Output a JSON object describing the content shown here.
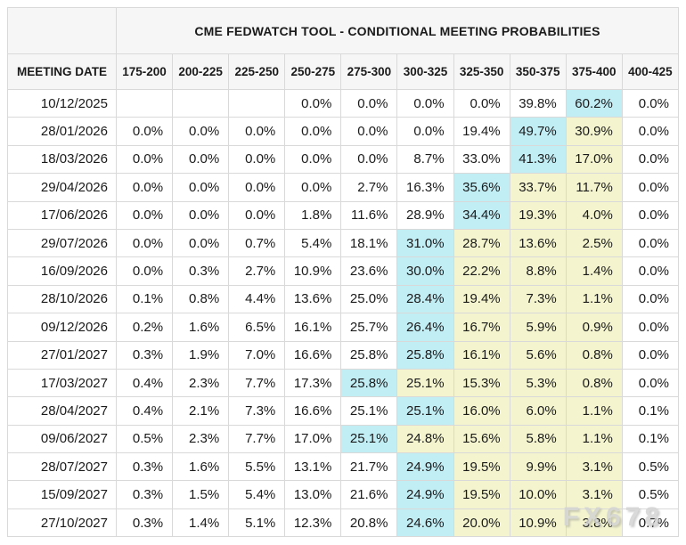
{
  "watermark": "FX678",
  "colors": {
    "cyan": "#c1edf5",
    "yellow": "#f4f5cf",
    "header_bg": "#f6f6f6",
    "border_color": "#d9d9d9",
    "text_color": "#1a1a1a",
    "watermark_color": "#d4d4d4"
  },
  "chart_data": {
    "type": "table",
    "title": "CME FEDWATCH TOOL - CONDITIONAL MEETING PROBABILITIES",
    "corner_label": "",
    "columns": [
      "MEETING DATE",
      "175-200",
      "200-225",
      "225-250",
      "250-275",
      "275-300",
      "300-325",
      "325-350",
      "350-375",
      "375-400",
      "400-425"
    ],
    "highlight_legend": {
      "c": "cyan (highest probability in row)",
      "y": "yellow"
    },
    "rows": [
      {
        "date": "10/12/2025",
        "values": [
          "",
          "",
          "",
          "0.0%",
          "0.0%",
          "0.0%",
          "0.0%",
          "39.8%",
          "60.2%",
          "0.0%"
        ],
        "highlight": [
          "",
          "",
          "",
          "",
          "",
          "",
          "",
          "",
          "c",
          ""
        ]
      },
      {
        "date": "28/01/2026",
        "values": [
          "0.0%",
          "0.0%",
          "0.0%",
          "0.0%",
          "0.0%",
          "0.0%",
          "19.4%",
          "49.7%",
          "30.9%",
          "0.0%"
        ],
        "highlight": [
          "",
          "",
          "",
          "",
          "",
          "",
          "",
          "c",
          "y",
          ""
        ]
      },
      {
        "date": "18/03/2026",
        "values": [
          "0.0%",
          "0.0%",
          "0.0%",
          "0.0%",
          "0.0%",
          "8.7%",
          "33.0%",
          "41.3%",
          "17.0%",
          "0.0%"
        ],
        "highlight": [
          "",
          "",
          "",
          "",
          "",
          "",
          "",
          "c",
          "y",
          ""
        ]
      },
      {
        "date": "29/04/2026",
        "values": [
          "0.0%",
          "0.0%",
          "0.0%",
          "0.0%",
          "2.7%",
          "16.3%",
          "35.6%",
          "33.7%",
          "11.7%",
          "0.0%"
        ],
        "highlight": [
          "",
          "",
          "",
          "",
          "",
          "",
          "c",
          "y",
          "y",
          ""
        ]
      },
      {
        "date": "17/06/2026",
        "values": [
          "0.0%",
          "0.0%",
          "0.0%",
          "1.8%",
          "11.6%",
          "28.9%",
          "34.4%",
          "19.3%",
          "4.0%",
          "0.0%"
        ],
        "highlight": [
          "",
          "",
          "",
          "",
          "",
          "",
          "c",
          "y",
          "y",
          ""
        ]
      },
      {
        "date": "29/07/2026",
        "values": [
          "0.0%",
          "0.0%",
          "0.7%",
          "5.4%",
          "18.1%",
          "31.0%",
          "28.7%",
          "13.6%",
          "2.5%",
          "0.0%"
        ],
        "highlight": [
          "",
          "",
          "",
          "",
          "",
          "c",
          "y",
          "y",
          "y",
          ""
        ]
      },
      {
        "date": "16/09/2026",
        "values": [
          "0.0%",
          "0.3%",
          "2.7%",
          "10.9%",
          "23.6%",
          "30.0%",
          "22.2%",
          "8.8%",
          "1.4%",
          "0.0%"
        ],
        "highlight": [
          "",
          "",
          "",
          "",
          "",
          "c",
          "y",
          "y",
          "y",
          ""
        ]
      },
      {
        "date": "28/10/2026",
        "values": [
          "0.1%",
          "0.8%",
          "4.4%",
          "13.6%",
          "25.0%",
          "28.4%",
          "19.4%",
          "7.3%",
          "1.1%",
          "0.0%"
        ],
        "highlight": [
          "",
          "",
          "",
          "",
          "",
          "c",
          "y",
          "y",
          "y",
          ""
        ]
      },
      {
        "date": "09/12/2026",
        "values": [
          "0.2%",
          "1.6%",
          "6.5%",
          "16.1%",
          "25.7%",
          "26.4%",
          "16.7%",
          "5.9%",
          "0.9%",
          "0.0%"
        ],
        "highlight": [
          "",
          "",
          "",
          "",
          "",
          "c",
          "y",
          "y",
          "y",
          ""
        ]
      },
      {
        "date": "27/01/2027",
        "values": [
          "0.3%",
          "1.9%",
          "7.0%",
          "16.6%",
          "25.8%",
          "25.8%",
          "16.1%",
          "5.6%",
          "0.8%",
          "0.0%"
        ],
        "highlight": [
          "",
          "",
          "",
          "",
          "",
          "c",
          "y",
          "y",
          "y",
          ""
        ]
      },
      {
        "date": "17/03/2027",
        "values": [
          "0.4%",
          "2.3%",
          "7.7%",
          "17.3%",
          "25.8%",
          "25.1%",
          "15.3%",
          "5.3%",
          "0.8%",
          "0.0%"
        ],
        "highlight": [
          "",
          "",
          "",
          "",
          "c",
          "y",
          "y",
          "y",
          "y",
          ""
        ]
      },
      {
        "date": "28/04/2027",
        "values": [
          "0.4%",
          "2.1%",
          "7.3%",
          "16.6%",
          "25.1%",
          "25.1%",
          "16.0%",
          "6.0%",
          "1.1%",
          "0.1%"
        ],
        "highlight": [
          "",
          "",
          "",
          "",
          "",
          "c",
          "y",
          "y",
          "y",
          ""
        ]
      },
      {
        "date": "09/06/2027",
        "values": [
          "0.5%",
          "2.3%",
          "7.7%",
          "17.0%",
          "25.1%",
          "24.8%",
          "15.6%",
          "5.8%",
          "1.1%",
          "0.1%"
        ],
        "highlight": [
          "",
          "",
          "",
          "",
          "c",
          "y",
          "y",
          "y",
          "y",
          ""
        ]
      },
      {
        "date": "28/07/2027",
        "values": [
          "0.3%",
          "1.6%",
          "5.5%",
          "13.1%",
          "21.7%",
          "24.9%",
          "19.5%",
          "9.9%",
          "3.1%",
          "0.5%"
        ],
        "highlight": [
          "",
          "",
          "",
          "",
          "",
          "c",
          "y",
          "y",
          "y",
          ""
        ]
      },
      {
        "date": "15/09/2027",
        "values": [
          "0.3%",
          "1.5%",
          "5.4%",
          "13.0%",
          "21.6%",
          "24.9%",
          "19.5%",
          "10.0%",
          "3.1%",
          "0.5%"
        ],
        "highlight": [
          "",
          "",
          "",
          "",
          "",
          "c",
          "y",
          "y",
          "y",
          ""
        ]
      },
      {
        "date": "27/10/2027",
        "values": [
          "0.3%",
          "1.4%",
          "5.1%",
          "12.3%",
          "20.8%",
          "24.6%",
          "20.0%",
          "10.9%",
          "3.8%",
          "0.7%"
        ],
        "highlight": [
          "",
          "",
          "",
          "",
          "",
          "c",
          "y",
          "y",
          "y",
          ""
        ]
      }
    ]
  }
}
